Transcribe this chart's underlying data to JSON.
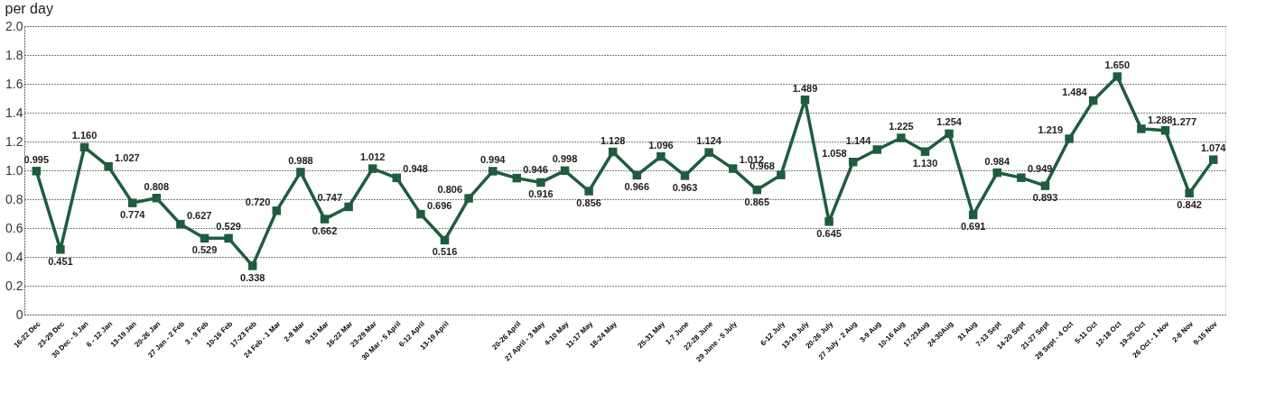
{
  "chart_data": {
    "type": "line",
    "title": "per day",
    "categories": [
      "16-22 Dec",
      "23-29 Dec",
      "30 Dec - 5 Jan",
      "6 - 12 Jan",
      "13-19 Jan",
      "20-26 Jan",
      "27 Jan - 2 Feb",
      "3 - 9 Feb",
      "10-16 Feb",
      "17-23 Feb",
      "24 Feb - 1 Mar",
      "2-8 Mar",
      "9-15 Mar",
      "16-22 Mar",
      "23-29 Mar",
      "30 Mar - 5 April",
      "6-12 April",
      "13-19 April",
      null,
      null,
      "20-26 April",
      "27 April - 3 May",
      "4-10 May",
      "11-17 May",
      "18-24 May",
      null,
      "25-31 May",
      "1-7 June",
      "22-28 June",
      "29 June - 5 July",
      null,
      "6-12 July",
      "13-19 July",
      "20-26 July",
      "27 July - 2 Aug",
      "3-9 Aug",
      "10-16 Aug",
      "17-23Aug",
      "24-30Aug",
      "31 Aug",
      "7-13 Sept",
      "14-20 Sept",
      "21-27 Sept",
      "28 Sept - 4 Oct",
      "5-11 Oct",
      "12-18 Oct",
      "19-25 Oct",
      "26 Oct - 1 Nov",
      "2-8 Nov",
      "9-15 Nov"
    ],
    "series": [
      {
        "color": "#1e5c40",
        "values": [
          0.995,
          0.451,
          1.16,
          1.027,
          0.774,
          0.808,
          0.627,
          0.529,
          0.529,
          0.338,
          0.72,
          0.988,
          0.662,
          0.747,
          1.012,
          0.948,
          0.696,
          0.516,
          0.806,
          0.994,
          0.946,
          0.916,
          0.998,
          0.856,
          1.128,
          0.966,
          1.096,
          0.963,
          1.124,
          1.012,
          0.865,
          0.968,
          1.489,
          0.645,
          1.058,
          1.144,
          1.225,
          1.13,
          1.254,
          0.691,
          0.984,
          0.949,
          0.893,
          1.219,
          1.484,
          1.65,
          1.288,
          1.277,
          0.842,
          1.074
        ],
        "value_labels": [
          "0.995",
          "0.451",
          "1.160",
          "1.027",
          "0.774",
          "0.808",
          "0.627",
          "0.529",
          "0.529",
          "0.338",
          "0.720",
          "0.988",
          "0.662",
          "0.747",
          "1.012",
          "0.948",
          "0.696",
          "0.516",
          "0.806",
          "0.994",
          "0.946",
          "0.916",
          "0.998",
          "0.856",
          "1.128",
          "0.966",
          "1.096",
          "0.963",
          "1.124",
          "1.012",
          "0.865",
          "0.968",
          "1.489",
          "0.645",
          "1.058",
          "1.144",
          "1.225",
          "1.130",
          "1.254",
          "0.691",
          "0.984",
          "0.949",
          "0.893",
          "1.219",
          "1.484",
          "1.650",
          "1.288",
          "1.277",
          "0.842",
          "1.074"
        ]
      }
    ],
    "ylim": [
      0,
      2.0
    ],
    "yticks": [
      0,
      {
        "value": 0.2,
        "label": "0.2"
      },
      {
        "value": 0.4,
        "label": "0.4"
      },
      {
        "value": 0.6,
        "label": "0.6"
      },
      {
        "value": 0.8,
        "label": "0.8"
      },
      {
        "value": 1.0,
        "label": "1.0"
      },
      {
        "value": 1.2,
        "label": "1.2"
      },
      {
        "value": 1.4,
        "label": "1.4"
      },
      {
        "value": 1.6,
        "label": "1.6"
      },
      {
        "value": 1.8,
        "label": "1.8"
      },
      {
        "value": 2.0,
        "label": "2.0"
      }
    ],
    "grid": "y",
    "marker": "square",
    "line_style": "solid"
  }
}
